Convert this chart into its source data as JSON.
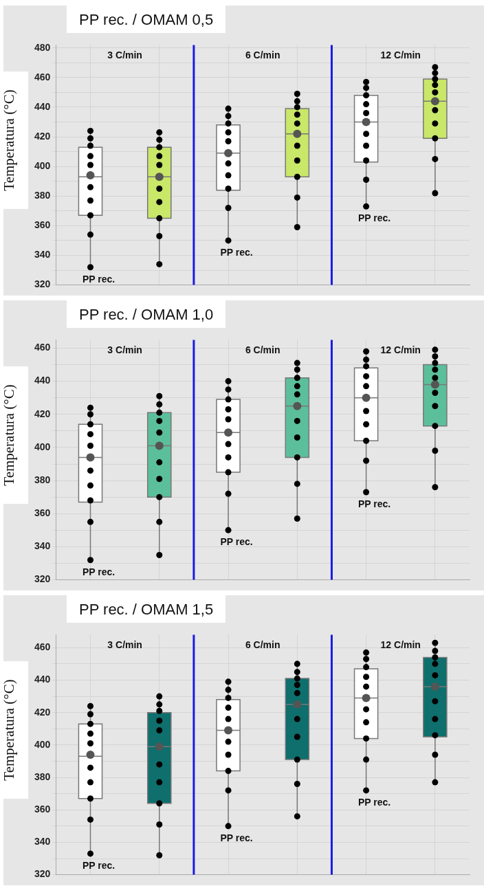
{
  "chart_data": [
    {
      "type": "box",
      "title": "PP rec. / OMAM 0,5",
      "ylabel": "Temperatura (°C)",
      "categories": [
        null,
        null,
        null,
        null,
        null,
        null
      ],
      "tick_labels": "y",
      "ylim": [
        320,
        482
      ],
      "yticks": [
        320,
        {
          "value": 330,
          "label": null
        },
        340,
        {
          "value": 350,
          "label": null
        },
        360,
        {
          "value": 370,
          "label": null
        },
        380,
        {
          "value": 390,
          "label": null
        },
        400,
        {
          "value": 410,
          "label": null
        },
        420,
        {
          "value": 430,
          "label": null
        },
        440,
        {
          "value": 450,
          "label": null
        },
        460,
        {
          "value": 470,
          "label": null
        },
        480
      ],
      "grid": true,
      "annotations": [
        "3 C/min",
        "6 C/min",
        "12 C/min",
        "PP rec.",
        "PP rec.",
        "PP rec."
      ],
      "series": [
        {
          "type": "box",
          "colors": [
            "#ffffff",
            "#c9e768",
            "#ffffff",
            "#c9e768",
            "#ffffff",
            "#c9e768"
          ],
          "boxes": [
            {
              "low": 332,
              "q1": 367,
              "median": 393,
              "q3": 413,
              "high": 424,
              "mean": 394
            },
            {
              "low": 334,
              "q1": 365,
              "median": 393,
              "q3": 413,
              "high": 423,
              "mean": 393
            },
            {
              "low": 350,
              "q1": 384,
              "median": 409,
              "q3": 428,
              "high": 439,
              "mean": 409
            },
            {
              "low": 359,
              "q1": 393,
              "median": 422,
              "q3": 439,
              "high": 449,
              "mean": 422
            },
            {
              "low": 373,
              "q1": 403,
              "median": 430,
              "q3": 448,
              "high": 457,
              "mean": 430
            },
            {
              "low": 382,
              "q1": 419,
              "median": 444,
              "q3": 459,
              "high": 467,
              "mean": 444
            }
          ]
        },
        {
          "type": "scatter",
          "color": "#000000",
          "marker": "circle",
          "values": [
            424,
            423,
            439,
            449,
            457,
            467
          ]
        },
        {
          "type": "scatter",
          "color": "#000000",
          "marker": "circle",
          "values": [
            419,
            418,
            434,
            444,
            453,
            463
          ]
        },
        {
          "type": "scatter",
          "color": "#000000",
          "marker": "circle",
          "values": [
            414,
            413,
            429,
            440,
            448,
            459
          ]
        },
        {
          "type": "scatter",
          "color": "#000000",
          "marker": "circle",
          "values": [
            407,
            407,
            423,
            435,
            442,
            455
          ]
        },
        {
          "type": "scatter",
          "color": "#000000",
          "marker": "circle",
          "values": [
            401,
            401,
            417,
            429,
            436,
            450
          ]
        },
        {
          "type": "scatter",
          "color": "#000000",
          "marker": "circle",
          "values": [
            386,
            385,
            402,
            414,
            422,
            438
          ]
        },
        {
          "type": "scatter",
          "color": "#000000",
          "marker": "circle",
          "values": [
            377,
            376,
            394,
            404,
            414,
            429
          ]
        },
        {
          "type": "scatter",
          "color": "#000000",
          "marker": "circle",
          "values": [
            367,
            365,
            385,
            393,
            404,
            419
          ]
        },
        {
          "type": "scatter",
          "color": "#000000",
          "marker": "circle",
          "values": [
            354,
            353,
            372,
            379,
            391,
            405
          ]
        },
        {
          "type": "scatter",
          "color": "#000000",
          "marker": "circle",
          "values": [
            332,
            334,
            350,
            359,
            373,
            382
          ]
        }
      ]
    },
    {
      "type": "box",
      "title": "PP rec. / OMAM 1,0",
      "ylabel": "Temperatura (°C)",
      "categories": [
        null,
        null,
        null,
        null,
        null,
        null
      ],
      "tick_labels": "y",
      "ylim": [
        320,
        465
      ],
      "yticks": [
        320,
        {
          "value": 330,
          "label": null
        },
        340,
        {
          "value": 350,
          "label": null
        },
        360,
        {
          "value": 370,
          "label": null
        },
        380,
        {
          "value": 390,
          "label": null
        },
        400,
        {
          "value": 410,
          "label": null
        },
        420,
        {
          "value": 430,
          "label": null
        },
        440,
        {
          "value": 450,
          "label": null
        },
        460
      ],
      "grid": true,
      "annotations": [
        "3 C/min",
        "6 C/min",
        "12 C/min",
        "PP rec.",
        "PP rec.",
        "PP rec."
      ],
      "series": [
        {
          "type": "box",
          "colors": [
            "#ffffff",
            "#5cbf9c",
            "#ffffff",
            "#5cbf9c",
            "#ffffff",
            "#5cbf9c"
          ],
          "boxes": [
            {
              "low": 332,
              "q1": 367,
              "median": 394,
              "q3": 414,
              "high": 424,
              "mean": 394
            },
            {
              "low": 335,
              "q1": 370,
              "median": 401,
              "q3": 421,
              "high": 431,
              "mean": 401
            },
            {
              "low": 350,
              "q1": 385,
              "median": 409,
              "q3": 429,
              "high": 440,
              "mean": 409
            },
            {
              "low": 357,
              "q1": 394,
              "median": 425,
              "q3": 442,
              "high": 451,
              "mean": 425
            },
            {
              "low": 373,
              "q1": 404,
              "median": 430,
              "q3": 448,
              "high": 458,
              "mean": 430
            },
            {
              "low": 376,
              "q1": 413,
              "median": 438,
              "q3": 450,
              "high": 459,
              "mean": 438
            }
          ]
        },
        {
          "type": "scatter",
          "color": "#000000",
          "marker": "circle",
          "values": [
            424,
            431,
            440,
            451,
            458,
            459
          ]
        },
        {
          "type": "scatter",
          "color": "#000000",
          "marker": "circle",
          "values": [
            420,
            426,
            435,
            447,
            453,
            455
          ]
        },
        {
          "type": "scatter",
          "color": "#000000",
          "marker": "circle",
          "values": [
            414,
            421,
            429,
            442,
            449,
            451
          ]
        },
        {
          "type": "scatter",
          "color": "#000000",
          "marker": "circle",
          "values": [
            408,
            416,
            423,
            437,
            443,
            447
          ]
        },
        {
          "type": "scatter",
          "color": "#000000",
          "marker": "circle",
          "values": [
            401,
            409,
            417,
            432,
            437,
            442
          ]
        },
        {
          "type": "scatter",
          "color": "#000000",
          "marker": "circle",
          "values": [
            386,
            391,
            402,
            416,
            422,
            433
          ]
        },
        {
          "type": "scatter",
          "color": "#000000",
          "marker": "circle",
          "values": [
            377,
            381,
            394,
            406,
            414,
            425
          ]
        },
        {
          "type": "scatter",
          "color": "#000000",
          "marker": "circle",
          "values": [
            368,
            370,
            385,
            394,
            404,
            413
          ]
        },
        {
          "type": "scatter",
          "color": "#000000",
          "marker": "circle",
          "values": [
            355,
            355,
            372,
            378,
            392,
            398
          ]
        },
        {
          "type": "scatter",
          "color": "#000000",
          "marker": "circle",
          "values": [
            332,
            335,
            350,
            357,
            373,
            376
          ]
        }
      ]
    },
    {
      "type": "box",
      "title": "PP rec. / OMAM 1,5",
      "ylabel": "Temperatura (°C)",
      "categories": [
        null,
        null,
        null,
        null,
        null,
        null
      ],
      "tick_labels": "y",
      "ylim": [
        320,
        468
      ],
      "yticks": [
        320,
        {
          "value": 330,
          "label": null
        },
        340,
        {
          "value": 350,
          "label": null
        },
        360,
        {
          "value": 370,
          "label": null
        },
        380,
        {
          "value": 390,
          "label": null
        },
        400,
        {
          "value": 410,
          "label": null
        },
        420,
        {
          "value": 430,
          "label": null
        },
        440,
        {
          "value": 450,
          "label": null
        },
        460
      ],
      "grid": true,
      "annotations": [
        "3 C/min",
        "6 C/min",
        "12 C/min",
        "PP rec.",
        "PP rec.",
        "PP rec."
      ],
      "series": [
        {
          "type": "box",
          "colors": [
            "#ffffff",
            "#0e6f6d",
            "#ffffff",
            "#0e6f6d",
            "#ffffff",
            "#0e6f6d"
          ],
          "boxes": [
            {
              "low": 333,
              "q1": 367,
              "median": 393,
              "q3": 413,
              "high": 424,
              "mean": 394
            },
            {
              "low": 332,
              "q1": 364,
              "median": 399,
              "q3": 420,
              "high": 430,
              "mean": 399
            },
            {
              "low": 350,
              "q1": 384,
              "median": 409,
              "q3": 428,
              "high": 439,
              "mean": 409
            },
            {
              "low": 356,
              "q1": 391,
              "median": 425,
              "q3": 441,
              "high": 450,
              "mean": 425
            },
            {
              "low": 372,
              "q1": 404,
              "median": 429,
              "q3": 447,
              "high": 457,
              "mean": 429
            },
            {
              "low": 377,
              "q1": 405,
              "median": 436,
              "q3": 454,
              "high": 463,
              "mean": 436
            }
          ]
        },
        {
          "type": "scatter",
          "color": "#000000",
          "marker": "circle",
          "values": [
            424,
            430,
            439,
            450,
            457,
            463
          ]
        },
        {
          "type": "scatter",
          "color": "#000000",
          "marker": "circle",
          "values": [
            419,
            425,
            434,
            445,
            453,
            458
          ]
        },
        {
          "type": "scatter",
          "color": "#000000",
          "marker": "circle",
          "values": [
            413,
            421,
            429,
            441,
            448,
            454
          ]
        },
        {
          "type": "scatter",
          "color": "#000000",
          "marker": "circle",
          "values": [
            407,
            415,
            423,
            437,
            442,
            450
          ]
        },
        {
          "type": "scatter",
          "color": "#000000",
          "marker": "circle",
          "values": [
            401,
            409,
            416,
            432,
            436,
            443
          ]
        },
        {
          "type": "scatter",
          "color": "#000000",
          "marker": "circle",
          "values": [
            386,
            388,
            402,
            416,
            422,
            427
          ]
        },
        {
          "type": "scatter",
          "color": "#000000",
          "marker": "circle",
          "values": [
            377,
            377,
            394,
            405,
            414,
            416
          ]
        },
        {
          "type": "scatter",
          "color": "#000000",
          "marker": "circle",
          "values": [
            367,
            364,
            384,
            391,
            404,
            406
          ]
        },
        {
          "type": "scatter",
          "color": "#000000",
          "marker": "circle",
          "values": [
            354,
            351,
            372,
            376,
            391,
            394
          ]
        },
        {
          "type": "scatter",
          "color": "#000000",
          "marker": "circle",
          "values": [
            333,
            332,
            350,
            356,
            372,
            377
          ]
        }
      ]
    }
  ]
}
